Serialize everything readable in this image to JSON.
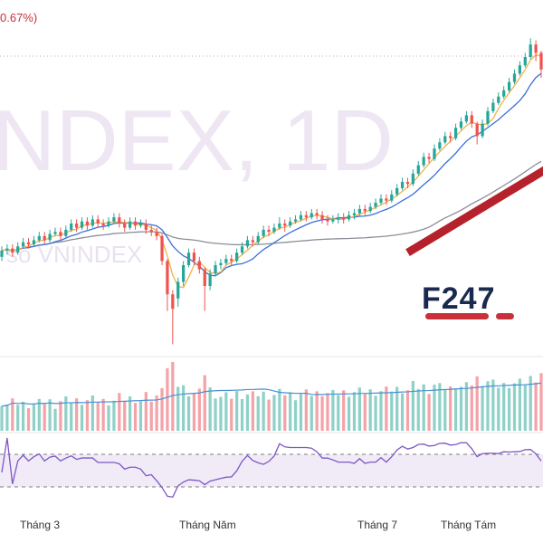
{
  "header": {
    "change_text": "0.67%)"
  },
  "watermark": {
    "symbol": "NDEX, 1D",
    "subtitle": "ỉ số VNINDEX"
  },
  "logo": {
    "text": "F247"
  },
  "x_axis": {
    "labels": [
      "Tháng 3",
      "Tháng Năm",
      "Tháng 7",
      "Tháng Tám"
    ]
  },
  "colors": {
    "up": "#26a69a",
    "down": "#ef5350",
    "ma_fast": "#f2b24a",
    "ma_mid": "#3a6fd8",
    "ma_slow": "#8d8d99",
    "trend": "#b5222c",
    "rsi": "#7e57c2",
    "rsi_band": "#f1ebf8"
  },
  "chart_data": {
    "type": "candlestick",
    "title": "",
    "x_ticks": [
      "Tháng 3",
      "Tháng Năm",
      "Tháng 7",
      "Tháng Tám"
    ],
    "candles": [
      {
        "o": 0.7,
        "c": 0.85,
        "h": 0.95,
        "l": 0.6
      },
      {
        "o": 0.85,
        "c": 0.9,
        "h": 1.0,
        "l": 0.75
      },
      {
        "o": 0.9,
        "c": 0.8,
        "h": 1.0,
        "l": 0.7
      },
      {
        "o": 0.8,
        "c": 0.95,
        "h": 1.05,
        "l": 0.75
      },
      {
        "o": 0.95,
        "c": 1.05,
        "h": 1.15,
        "l": 0.9
      },
      {
        "o": 1.05,
        "c": 1.0,
        "h": 1.15,
        "l": 0.9
      },
      {
        "o": 1.0,
        "c": 1.1,
        "h": 1.2,
        "l": 0.95
      },
      {
        "o": 1.1,
        "c": 1.2,
        "h": 1.3,
        "l": 1.05
      },
      {
        "o": 1.2,
        "c": 1.1,
        "h": 1.3,
        "l": 1.0
      },
      {
        "o": 1.1,
        "c": 1.25,
        "h": 1.35,
        "l": 1.05
      },
      {
        "o": 1.25,
        "c": 1.3,
        "h": 1.4,
        "l": 1.2
      },
      {
        "o": 1.3,
        "c": 1.2,
        "h": 1.4,
        "l": 1.1
      },
      {
        "o": 1.2,
        "c": 1.35,
        "h": 1.45,
        "l": 1.15
      },
      {
        "o": 1.35,
        "c": 1.5,
        "h": 1.6,
        "l": 1.3
      },
      {
        "o": 1.5,
        "c": 1.4,
        "h": 1.6,
        "l": 1.3
      },
      {
        "o": 1.4,
        "c": 1.55,
        "h": 1.65,
        "l": 1.35
      },
      {
        "o": 1.55,
        "c": 1.45,
        "h": 1.65,
        "l": 1.35
      },
      {
        "o": 1.45,
        "c": 1.6,
        "h": 1.7,
        "l": 1.4
      },
      {
        "o": 1.6,
        "c": 1.5,
        "h": 1.7,
        "l": 1.4
      },
      {
        "o": 1.5,
        "c": 1.45,
        "h": 1.6,
        "l": 1.35
      },
      {
        "o": 1.45,
        "c": 1.55,
        "h": 1.65,
        "l": 1.4
      },
      {
        "o": 1.55,
        "c": 1.65,
        "h": 1.75,
        "l": 1.5
      },
      {
        "o": 1.65,
        "c": 1.5,
        "h": 1.75,
        "l": 1.4
      },
      {
        "o": 1.5,
        "c": 1.4,
        "h": 1.6,
        "l": 1.3
      },
      {
        "o": 1.4,
        "c": 1.55,
        "h": 1.65,
        "l": 1.35
      },
      {
        "o": 1.55,
        "c": 1.45,
        "h": 1.65,
        "l": 1.35
      },
      {
        "o": 1.45,
        "c": 1.5,
        "h": 1.6,
        "l": 1.4
      },
      {
        "o": 1.5,
        "c": 1.35,
        "h": 1.6,
        "l": 1.25
      },
      {
        "o": 1.35,
        "c": 1.3,
        "h": 1.45,
        "l": 1.2
      },
      {
        "o": 1.3,
        "c": 1.2,
        "h": 1.4,
        "l": 1.1
      },
      {
        "o": 1.2,
        "c": 0.6,
        "h": 1.25,
        "l": 0.5
      },
      {
        "o": 0.6,
        "c": -0.2,
        "h": 0.65,
        "l": -0.6
      },
      {
        "o": -0.2,
        "c": -0.55,
        "h": -0.1,
        "l": -1.4
      },
      {
        "o": -0.3,
        "c": 0.1,
        "h": 0.2,
        "l": -0.5
      },
      {
        "o": 0.1,
        "c": 0.5,
        "h": 0.6,
        "l": 0.0
      },
      {
        "o": 0.5,
        "c": 0.8,
        "h": 0.9,
        "l": 0.45
      },
      {
        "o": 0.8,
        "c": 0.6,
        "h": 0.9,
        "l": 0.5
      },
      {
        "o": 0.6,
        "c": 0.4,
        "h": 0.7,
        "l": 0.3
      },
      {
        "o": 0.4,
        "c": 0.0,
        "h": 0.45,
        "l": -0.6
      },
      {
        "o": 0.0,
        "c": 0.3,
        "h": 0.4,
        "l": -0.1
      },
      {
        "o": 0.3,
        "c": 0.5,
        "h": 0.6,
        "l": 0.25
      },
      {
        "o": 0.5,
        "c": 0.55,
        "h": 0.65,
        "l": 0.4
      },
      {
        "o": 0.55,
        "c": 0.65,
        "h": 0.75,
        "l": 0.5
      },
      {
        "o": 0.65,
        "c": 0.6,
        "h": 0.75,
        "l": 0.5
      },
      {
        "o": 0.6,
        "c": 0.8,
        "h": 0.9,
        "l": 0.55
      },
      {
        "o": 0.8,
        "c": 0.95,
        "h": 1.05,
        "l": 0.75
      },
      {
        "o": 0.95,
        "c": 1.1,
        "h": 1.2,
        "l": 0.9
      },
      {
        "o": 1.1,
        "c": 1.05,
        "h": 1.2,
        "l": 0.95
      },
      {
        "o": 1.05,
        "c": 1.2,
        "h": 1.3,
        "l": 1.0
      },
      {
        "o": 1.2,
        "c": 1.35,
        "h": 1.45,
        "l": 1.15
      },
      {
        "o": 1.35,
        "c": 1.3,
        "h": 1.45,
        "l": 1.2
      },
      {
        "o": 1.3,
        "c": 1.4,
        "h": 1.5,
        "l": 1.25
      },
      {
        "o": 1.4,
        "c": 1.5,
        "h": 1.65,
        "l": 1.35
      },
      {
        "o": 1.5,
        "c": 1.45,
        "h": 1.6,
        "l": 1.3
      },
      {
        "o": 1.45,
        "c": 1.55,
        "h": 1.65,
        "l": 1.4
      },
      {
        "o": 1.55,
        "c": 1.6,
        "h": 1.7,
        "l": 1.5
      },
      {
        "o": 1.6,
        "c": 1.7,
        "h": 1.8,
        "l": 1.55
      },
      {
        "o": 1.7,
        "c": 1.65,
        "h": 1.8,
        "l": 1.55
      },
      {
        "o": 1.65,
        "c": 1.75,
        "h": 1.85,
        "l": 1.6
      },
      {
        "o": 1.75,
        "c": 1.7,
        "h": 1.85,
        "l": 1.6
      },
      {
        "o": 1.7,
        "c": 1.6,
        "h": 1.8,
        "l": 1.5
      },
      {
        "o": 1.6,
        "c": 1.55,
        "h": 1.7,
        "l": 1.45
      },
      {
        "o": 1.55,
        "c": 1.6,
        "h": 1.7,
        "l": 1.5
      },
      {
        "o": 1.6,
        "c": 1.65,
        "h": 1.75,
        "l": 1.5
      },
      {
        "o": 1.65,
        "c": 1.6,
        "h": 1.75,
        "l": 1.5
      },
      {
        "o": 1.6,
        "c": 1.7,
        "h": 1.8,
        "l": 1.55
      },
      {
        "o": 1.7,
        "c": 1.75,
        "h": 1.85,
        "l": 1.6
      },
      {
        "o": 1.75,
        "c": 1.85,
        "h": 1.95,
        "l": 1.7
      },
      {
        "o": 1.85,
        "c": 1.8,
        "h": 1.95,
        "l": 1.7
      },
      {
        "o": 1.8,
        "c": 1.9,
        "h": 2.0,
        "l": 1.75
      },
      {
        "o": 1.9,
        "c": 2.0,
        "h": 2.1,
        "l": 1.85
      },
      {
        "o": 2.0,
        "c": 2.1,
        "h": 2.2,
        "l": 1.95
      },
      {
        "o": 2.1,
        "c": 2.05,
        "h": 2.2,
        "l": 1.95
      },
      {
        "o": 2.05,
        "c": 2.2,
        "h": 2.3,
        "l": 2.0
      },
      {
        "o": 2.2,
        "c": 2.35,
        "h": 2.45,
        "l": 2.15
      },
      {
        "o": 2.35,
        "c": 2.5,
        "h": 2.6,
        "l": 2.3
      },
      {
        "o": 2.5,
        "c": 2.45,
        "h": 2.6,
        "l": 2.35
      },
      {
        "o": 2.45,
        "c": 2.7,
        "h": 2.8,
        "l": 2.4
      },
      {
        "o": 2.7,
        "c": 2.9,
        "h": 3.0,
        "l": 2.65
      },
      {
        "o": 2.9,
        "c": 3.1,
        "h": 3.2,
        "l": 2.85
      },
      {
        "o": 3.1,
        "c": 3.05,
        "h": 3.2,
        "l": 2.95
      },
      {
        "o": 3.05,
        "c": 3.3,
        "h": 3.4,
        "l": 3.0
      },
      {
        "o": 3.3,
        "c": 3.45,
        "h": 3.55,
        "l": 3.25
      },
      {
        "o": 3.45,
        "c": 3.6,
        "h": 3.7,
        "l": 3.4
      },
      {
        "o": 3.6,
        "c": 3.55,
        "h": 3.7,
        "l": 3.45
      },
      {
        "o": 3.55,
        "c": 3.8,
        "h": 3.9,
        "l": 3.5
      },
      {
        "o": 3.8,
        "c": 3.95,
        "h": 4.05,
        "l": 3.75
      },
      {
        "o": 3.95,
        "c": 4.1,
        "h": 4.2,
        "l": 3.9
      },
      {
        "o": 4.1,
        "c": 3.9,
        "h": 4.2,
        "l": 3.8
      },
      {
        "o": 3.9,
        "c": 3.6,
        "h": 3.95,
        "l": 3.4
      },
      {
        "o": 3.6,
        "c": 3.9,
        "h": 4.0,
        "l": 3.55
      },
      {
        "o": 3.9,
        "c": 4.2,
        "h": 4.3,
        "l": 3.85
      },
      {
        "o": 4.2,
        "c": 4.4,
        "h": 4.5,
        "l": 4.15
      },
      {
        "o": 4.4,
        "c": 4.55,
        "h": 4.65,
        "l": 4.35
      },
      {
        "o": 4.55,
        "c": 4.7,
        "h": 4.8,
        "l": 4.5
      },
      {
        "o": 4.7,
        "c": 4.9,
        "h": 5.0,
        "l": 4.65
      },
      {
        "o": 4.9,
        "c": 5.1,
        "h": 5.2,
        "l": 4.85
      },
      {
        "o": 5.1,
        "c": 5.3,
        "h": 5.4,
        "l": 5.05
      },
      {
        "o": 5.3,
        "c": 5.5,
        "h": 5.6,
        "l": 5.25
      },
      {
        "o": 5.5,
        "c": 5.8,
        "h": 5.95,
        "l": 5.45
      },
      {
        "o": 5.8,
        "c": 5.6,
        "h": 5.9,
        "l": 5.4
      },
      {
        "o": 5.6,
        "c": 5.2,
        "h": 5.65,
        "l": 5.0
      }
    ],
    "trendline": {
      "from": [
        76,
        0.8
      ],
      "to": [
        104,
        3.1
      ]
    }
  }
}
